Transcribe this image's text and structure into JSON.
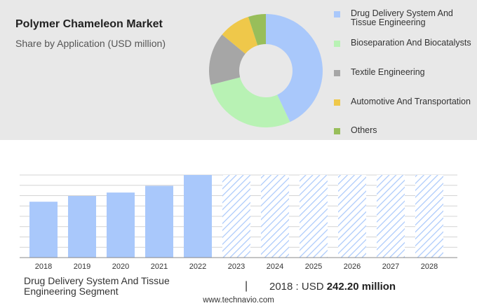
{
  "header": {
    "title": "Polymer Chameleon Market",
    "subtitle": "Share by Application (USD million)"
  },
  "colors": {
    "bar_actual": "#a9c8fb",
    "bar_forecast_hatch": "#a9c8fb",
    "panel_bg": "#e8e8e8"
  },
  "chart_data": [
    {
      "type": "pie",
      "variant": "donut",
      "segments": [
        {
          "label": "Drug Delivery System And Tissue Engineering",
          "value": 43,
          "color": "#a9c8fb"
        },
        {
          "label": "Bioseparation And Biocatalysts",
          "value": 28,
          "color": "#b8f2b4"
        },
        {
          "label": "Textile Engineering",
          "value": 15,
          "color": "#a6a6a6"
        },
        {
          "label": "Automotive And Transportation",
          "value": 9,
          "color": "#efc84a"
        },
        {
          "label": "Others",
          "value": 5,
          "color": "#98be5a"
        }
      ],
      "legend_position": "right"
    },
    {
      "type": "bar",
      "categories": [
        "2018",
        "2019",
        "2020",
        "2021",
        "2022",
        "2023",
        "2024",
        "2025",
        "2026",
        "2027",
        "2028"
      ],
      "values": [
        242.2,
        267,
        282,
        311,
        358,
        358,
        358,
        358,
        358,
        358,
        358
      ],
      "forecast_from": "2023",
      "ylim": [
        0,
        358
      ],
      "grid": true
    }
  ],
  "footer": {
    "segment_label": "Drug Delivery System And Tissue Engineering Segment",
    "divider": "|",
    "year_label": "2018 : USD",
    "value_label": "242.20 million",
    "source": "www.technavio.com"
  }
}
